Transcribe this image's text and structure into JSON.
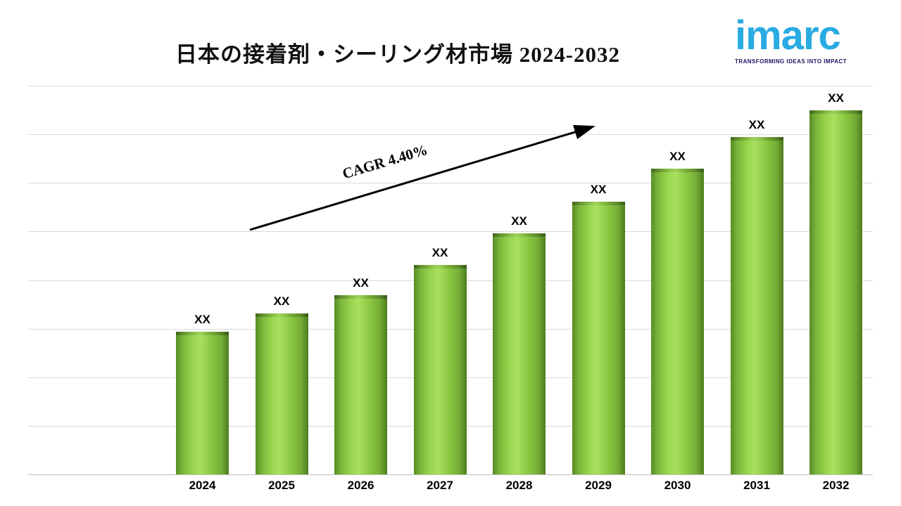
{
  "logo": {
    "brand": "imarc",
    "tagline": "TRANSFORMING IDEAS INTO IMPACT",
    "brand_color": "#29abe2",
    "tagline_color": "#1b1464"
  },
  "chart_data": {
    "type": "bar",
    "title": "日本の接着剤・シーリング材市場 2024-2032",
    "categories": [
      "2024",
      "2025",
      "2026",
      "2027",
      "2028",
      "2029",
      "2030",
      "2031",
      "2032"
    ],
    "bar_value_labels": [
      "XX",
      "XX",
      "XX",
      "XX",
      "XX",
      "XX",
      "XX",
      "XX",
      "XX"
    ],
    "values_relative": [
      203,
      229,
      255,
      298,
      343,
      388,
      435,
      480,
      518
    ],
    "value_scale_max": 553,
    "annotation": {
      "text": "CAGR 4.40%"
    },
    "bar_color": "#8dc63f",
    "bar_color_dark": "#578c24",
    "gridline_color": "#d9d9d9",
    "gridline_count": 9,
    "grid": true,
    "legend": "none",
    "xlabel": "",
    "ylabel": ""
  }
}
